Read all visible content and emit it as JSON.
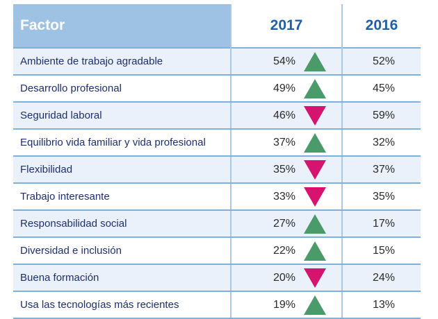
{
  "table": {
    "headers": {
      "factor": "Factor",
      "year_a": "2017",
      "year_b": "2016"
    },
    "colors": {
      "up": "#4a9a6a",
      "down": "#d6136e",
      "header_bg": "#9ec2e4",
      "header_year_text": "#1f5fa8"
    },
    "rows": [
      {
        "factor": "Ambiente de trabajo agradable",
        "v2017": "54%",
        "trend": "up",
        "v2016": "52%"
      },
      {
        "factor": "Desarrollo profesional",
        "v2017": "49%",
        "trend": "up",
        "v2016": "45%"
      },
      {
        "factor": "Seguridad laboral",
        "v2017": "46%",
        "trend": "down",
        "v2016": "59%"
      },
      {
        "factor": "Equilibrio vida familiar y vida profesional",
        "v2017": "37%",
        "trend": "up",
        "v2016": "32%"
      },
      {
        "factor": "Flexibilidad",
        "v2017": "35%",
        "trend": "down",
        "v2016": "37%"
      },
      {
        "factor": "Trabajo interesante",
        "v2017": "33%",
        "trend": "down",
        "v2016": "35%"
      },
      {
        "factor": "Responsabilidad social",
        "v2017": "27%",
        "trend": "up",
        "v2016": "17%"
      },
      {
        "factor": "Diversidad e inclusión",
        "v2017": "22%",
        "trend": "up",
        "v2016": "15%"
      },
      {
        "factor": "Buena formación",
        "v2017": "20%",
        "trend": "down",
        "v2016": "24%"
      },
      {
        "factor": "Usa las tecnologías más recientes",
        "v2017": "19%",
        "trend": "up",
        "v2016": "13%"
      }
    ]
  }
}
